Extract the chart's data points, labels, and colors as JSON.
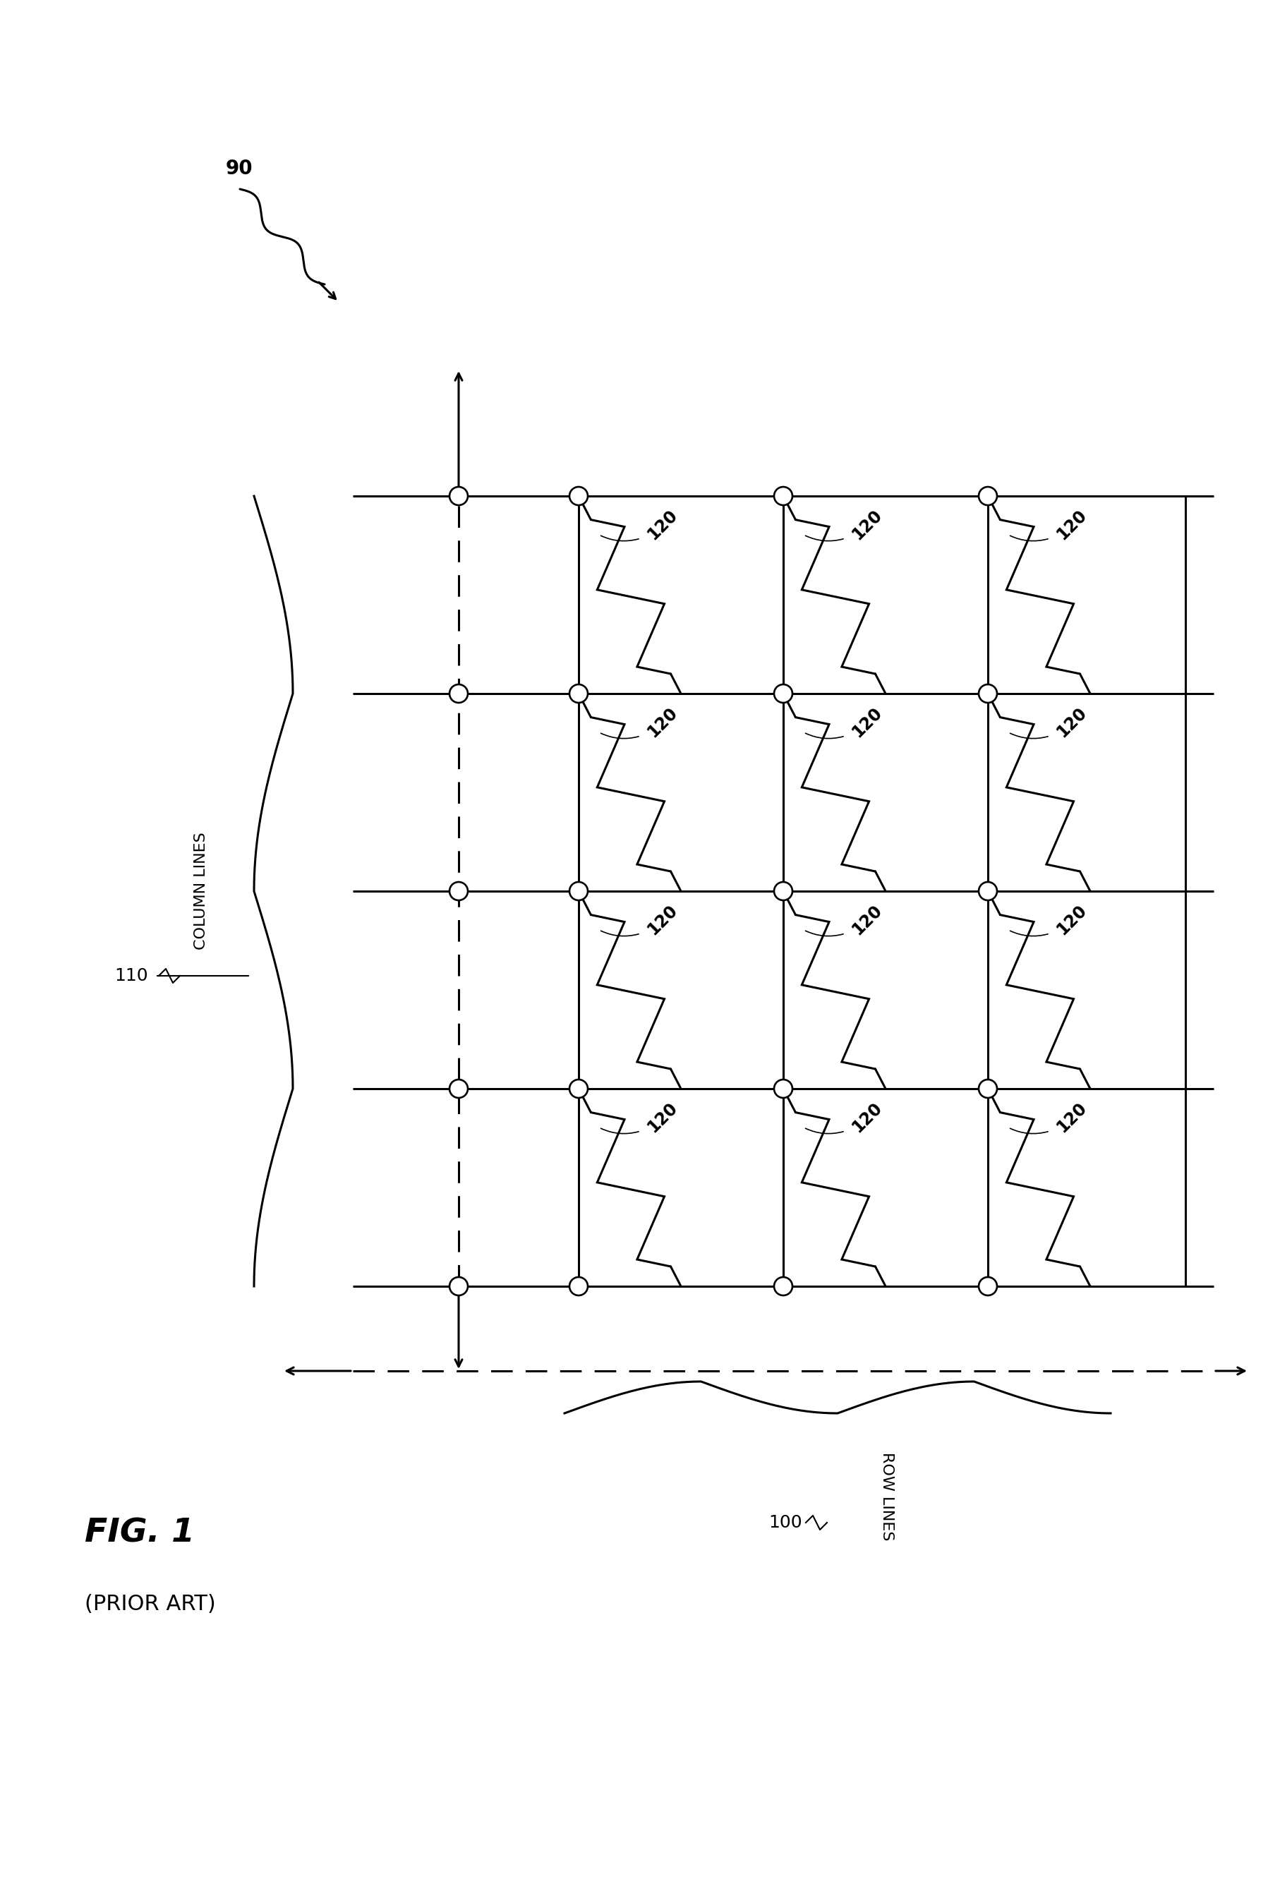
{
  "fig_label": "FIG. 1",
  "fig_sublabel": "(PRIOR ART)",
  "label_90": "90",
  "label_110": "110",
  "label_100": "100",
  "label_col_lines": "COLUMN LINES",
  "label_row_lines": "ROW LINES",
  "label_120": "120",
  "grid_rows": 4,
  "grid_cols": 3,
  "bg_color": "#ffffff",
  "line_color": "#000000",
  "lw": 2.2
}
